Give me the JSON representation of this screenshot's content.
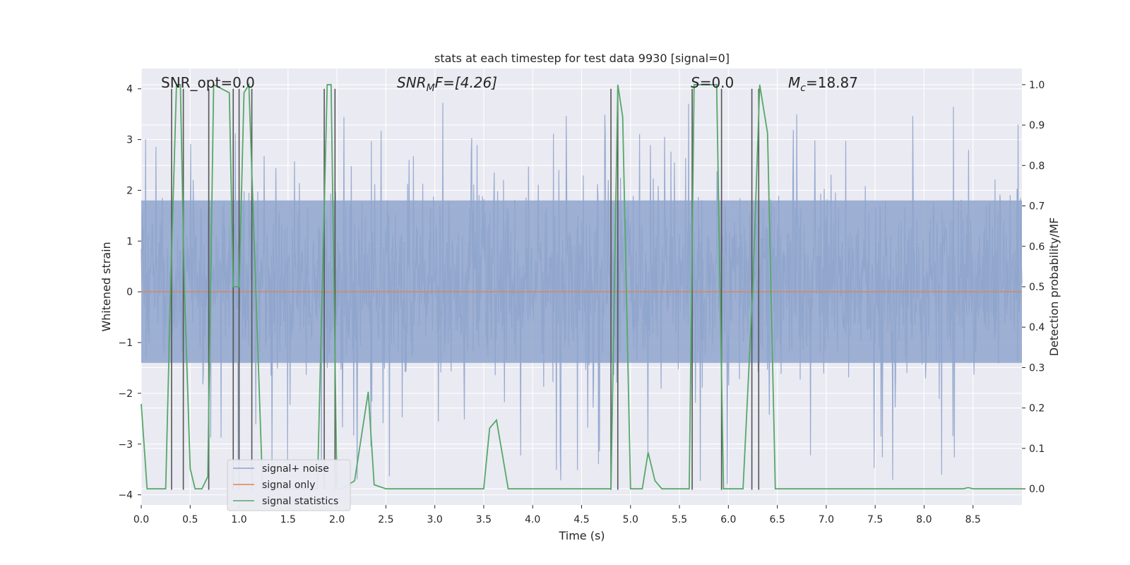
{
  "chart_data": {
    "type": "line",
    "title": "stats at each timestep for test data 9930 [signal=0]",
    "xlabel": "Time (s)",
    "ylabel": "Whitened strain",
    "ylabel_right": "Detection probability/MF",
    "xlim": [
      0.0,
      9.0
    ],
    "ylim": [
      -4.2,
      4.4
    ],
    "ylim_right": [
      -0.04,
      1.04
    ],
    "x_ticks": [
      "0.0",
      "0.5",
      "1.0",
      "1.5",
      "2.0",
      "2.5",
      "3.0",
      "3.5",
      "4.0",
      "4.5",
      "5.0",
      "5.5",
      "6.0",
      "6.5",
      "7.0",
      "7.5",
      "8.0",
      "8.5"
    ],
    "y_ticks": [
      "4",
      "3",
      "2",
      "1",
      "0",
      "−1",
      "−2",
      "−3",
      "−4"
    ],
    "y_ticks_right": [
      "1.0",
      "0.9",
      "0.8",
      "0.7",
      "0.6",
      "0.5",
      "0.4",
      "0.3",
      "0.2",
      "0.1",
      "0.0"
    ],
    "grid": true,
    "legend_position": "lower-left",
    "annotations": {
      "snr_opt": "SNR_opt=0.0",
      "snr_mf_label": "SNR",
      "snr_mf_sub": "M",
      "snr_mf_rest": "F=[4.26]",
      "s_label": "S",
      "s_rest": "=0.0",
      "mc_label": "M",
      "mc_sub": "c",
      "mc_rest": "=18.87"
    },
    "series": [
      {
        "name": "signal+ noise",
        "color": "#8fa4cc",
        "description_type": "noisy strain, dense random fluctuation",
        "envelope_typical": [
          -1.4,
          1.8
        ],
        "peaks_max": 4.0,
        "peaks_min": -3.9
      },
      {
        "name": "signal only",
        "color": "#dd8452",
        "x": [
          0.0,
          9.0
        ],
        "y": [
          0.0,
          0.0
        ]
      },
      {
        "name": "signal statistics",
        "color": "#55a868",
        "axis": "right",
        "x": [
          0.0,
          0.06,
          0.25,
          0.3,
          0.36,
          0.4,
          0.44,
          0.5,
          0.55,
          0.62,
          0.68,
          0.74,
          0.9,
          0.94,
          1.0,
          1.05,
          1.1,
          1.24,
          1.4,
          1.8,
          1.9,
          1.94,
          2.0,
          2.05,
          2.18,
          2.32,
          2.38,
          2.5,
          3.0,
          3.5,
          3.56,
          3.63,
          3.75,
          4.0,
          4.5,
          4.8,
          4.87,
          4.92,
          5.0,
          5.12,
          5.18,
          5.25,
          5.32,
          5.5,
          5.6,
          5.65,
          5.88,
          5.95,
          6.0,
          6.15,
          6.25,
          6.32,
          6.4,
          6.48,
          7.0,
          8.0,
          8.4,
          8.45,
          8.5,
          9.0
        ],
        "y": [
          0.21,
          0.0,
          0.0,
          0.5,
          1.0,
          1.0,
          0.5,
          0.05,
          0.0,
          0.0,
          0.03,
          1.0,
          0.98,
          0.5,
          0.5,
          0.98,
          1.0,
          0.0,
          0.0,
          0.0,
          1.0,
          1.0,
          0.0,
          0.0,
          0.02,
          0.24,
          0.01,
          0.0,
          0.0,
          0.0,
          0.15,
          0.17,
          0.0,
          0.0,
          0.0,
          0.0,
          1.0,
          0.92,
          0.0,
          0.0,
          0.09,
          0.02,
          0.0,
          0.0,
          0.0,
          1.0,
          1.0,
          0.0,
          0.0,
          0.0,
          0.5,
          1.0,
          0.88,
          0.0,
          0.0,
          0.0,
          0.0,
          0.003,
          0.0,
          0.0
        ]
      }
    ],
    "vertical_lines": {
      "color": "#555555",
      "x": [
        0.31,
        0.43,
        0.69,
        0.94,
        1.0,
        1.13,
        1.87,
        1.98,
        4.8,
        4.87,
        5.63,
        5.93,
        6.24,
        6.31
      ],
      "y_range": [
        -3.9,
        4.0
      ]
    }
  }
}
